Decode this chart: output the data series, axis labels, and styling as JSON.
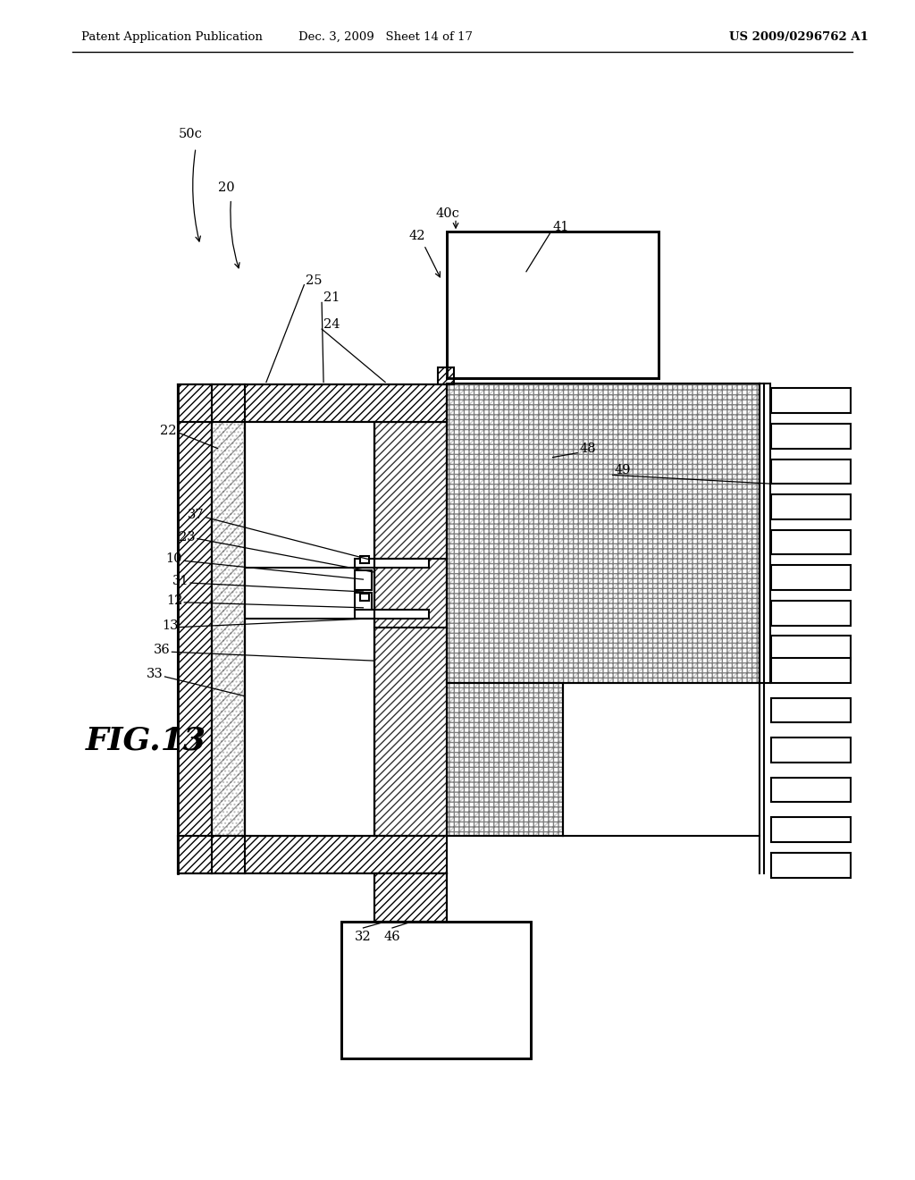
{
  "header_left": "Patent Application Publication",
  "header_mid": "Dec. 3, 2009   Sheet 14 of 17",
  "header_right": "US 2009/0296762 A1",
  "fig_label": "FIG.13",
  "background_color": "#ffffff",
  "line_color": "#000000"
}
